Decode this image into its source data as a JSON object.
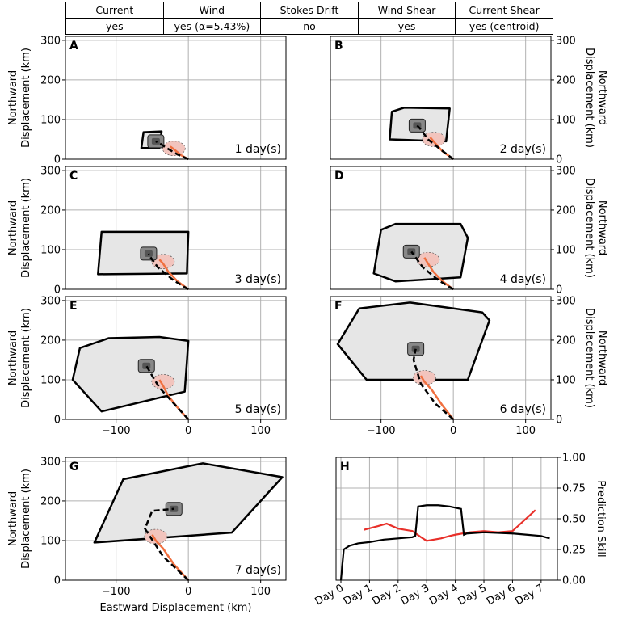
{
  "config_table": {
    "headers": [
      "Current",
      "Wind",
      "Stokes Drift",
      "Wind Shear",
      "Current Shear"
    ],
    "values": [
      "yes",
      "yes (α=5.43%)",
      "no",
      "yes",
      "yes (centroid)"
    ]
  },
  "colors": {
    "hull": "#000000",
    "fill_light": "#e6e6e6",
    "fill_dark": "#555555",
    "observed_track": "#000000",
    "model_track": "#f07040",
    "pink_region": "#f2c4bd",
    "skill_red": "#e8302a",
    "skill_black": "#000000"
  },
  "chart_data": [
    {
      "panel": "A",
      "type": "scatter",
      "annotation": "1 day(s)",
      "ylabel": "Northward Displacement (km)",
      "xlabel": "",
      "xlim": [
        -170,
        135
      ],
      "ylim": [
        0,
        310
      ],
      "yticks": [
        0,
        100,
        200,
        300
      ],
      "xticks": [
        -100,
        0,
        100
      ],
      "grid": true,
      "hull": [
        [
          -62,
          68
        ],
        [
          -37,
          70
        ],
        [
          -40,
          28
        ],
        [
          -65,
          28
        ]
      ],
      "observed_track": [
        [
          0,
          0
        ],
        [
          -15,
          12
        ],
        [
          -30,
          28
        ],
        [
          -38,
          38
        ],
        [
          -45,
          45
        ]
      ],
      "model_track": [
        [
          0,
          0
        ],
        [
          -10,
          10
        ],
        [
          -20,
          25
        ],
        [
          -25,
          32
        ]
      ]
    },
    {
      "panel": "B",
      "type": "scatter",
      "annotation": "2 day(s)",
      "ylabel": "Northward Displacement (km)",
      "xlabel": "",
      "xlim": [
        -170,
        135
      ],
      "ylim": [
        0,
        310
      ],
      "yticks": [
        0,
        100,
        200,
        300
      ],
      "xticks": [
        -100,
        0,
        100
      ],
      "grid": true,
      "hull": [
        [
          -85,
          120
        ],
        [
          -68,
          130
        ],
        [
          -5,
          128
        ],
        [
          -10,
          45
        ],
        [
          -88,
          50
        ]
      ],
      "observed_track": [
        [
          0,
          0
        ],
        [
          -18,
          25
        ],
        [
          -35,
          50
        ],
        [
          -45,
          75
        ],
        [
          -50,
          85
        ]
      ],
      "model_track": [
        [
          0,
          0
        ],
        [
          -15,
          20
        ],
        [
          -25,
          40
        ],
        [
          -32,
          55
        ]
      ]
    },
    {
      "panel": "C",
      "type": "scatter",
      "annotation": "3 day(s)",
      "ylabel": "Northward Displacement (km)",
      "xlabel": "",
      "xlim": [
        -170,
        135
      ],
      "ylim": [
        0,
        310
      ],
      "yticks": [
        0,
        100,
        200,
        300
      ],
      "xticks": [
        -100,
        0,
        100
      ],
      "grid": true,
      "hull": [
        [
          -120,
          145
        ],
        [
          0,
          145
        ],
        [
          -2,
          40
        ],
        [
          -125,
          38
        ]
      ],
      "observed_track": [
        [
          0,
          0
        ],
        [
          -20,
          22
        ],
        [
          -42,
          55
        ],
        [
          -52,
          80
        ],
        [
          -55,
          90
        ]
      ],
      "model_track": [
        [
          0,
          0
        ],
        [
          -15,
          20
        ],
        [
          -28,
          45
        ],
        [
          -35,
          65
        ],
        [
          -40,
          75
        ]
      ]
    },
    {
      "panel": "D",
      "type": "scatter",
      "annotation": "4 day(s)",
      "ylabel": "Northward Displacement (km)",
      "xlabel": "",
      "xlim": [
        -170,
        135
      ],
      "ylim": [
        0,
        310
      ],
      "yticks": [
        0,
        100,
        200,
        300
      ],
      "xticks": [
        -100,
        0,
        100
      ],
      "grid": true,
      "hull": [
        [
          -100,
          150
        ],
        [
          -80,
          165
        ],
        [
          10,
          165
        ],
        [
          20,
          130
        ],
        [
          10,
          30
        ],
        [
          -80,
          20
        ],
        [
          -110,
          40
        ]
      ],
      "observed_track": [
        [
          0,
          0
        ],
        [
          -20,
          22
        ],
        [
          -42,
          55
        ],
        [
          -52,
          80
        ],
        [
          -58,
          95
        ]
      ],
      "model_track": [
        [
          0,
          0
        ],
        [
          -15,
          20
        ],
        [
          -28,
          45
        ],
        [
          -35,
          65
        ],
        [
          -40,
          80
        ]
      ]
    },
    {
      "panel": "E",
      "type": "scatter",
      "annotation": "5 day(s)",
      "ylabel": "Northward Displacement (km)",
      "xlabel": "",
      "xlim": [
        -170,
        135
      ],
      "ylim": [
        0,
        310
      ],
      "yticks": [
        0,
        100,
        200,
        300
      ],
      "xticks": [
        -100,
        0,
        100
      ],
      "grid": true,
      "hull": [
        [
          -150,
          180
        ],
        [
          -110,
          205
        ],
        [
          -40,
          208
        ],
        [
          0,
          198
        ],
        [
          -5,
          70
        ],
        [
          -120,
          20
        ],
        [
          -160,
          100
        ]
      ],
      "observed_track": [
        [
          0,
          0
        ],
        [
          -20,
          40
        ],
        [
          -40,
          80
        ],
        [
          -50,
          110
        ],
        [
          -58,
          135
        ]
      ],
      "model_track": [
        [
          0,
          0
        ],
        [
          -15,
          30
        ],
        [
          -28,
          60
        ],
        [
          -35,
          85
        ],
        [
          -40,
          100
        ]
      ]
    },
    {
      "panel": "F",
      "type": "scatter",
      "annotation": "6 day(s)",
      "ylabel": "Northward Displacement (km)",
      "xlabel": "",
      "xlim": [
        -170,
        135
      ],
      "ylim": [
        0,
        310
      ],
      "yticks": [
        0,
        100,
        200,
        300
      ],
      "xticks": [
        -100,
        0,
        100
      ],
      "grid": true,
      "hull": [
        [
          -130,
          280
        ],
        [
          -60,
          295
        ],
        [
          40,
          270
        ],
        [
          50,
          250
        ],
        [
          20,
          100
        ],
        [
          -120,
          100
        ],
        [
          -160,
          190
        ]
      ],
      "observed_track": [
        [
          0,
          0
        ],
        [
          -25,
          40
        ],
        [
          -45,
          90
        ],
        [
          -55,
          150
        ],
        [
          -52,
          178
        ]
      ],
      "model_track": [
        [
          0,
          0
        ],
        [
          -15,
          35
        ],
        [
          -30,
          75
        ],
        [
          -40,
          95
        ],
        [
          -45,
          110
        ]
      ]
    },
    {
      "panel": "G",
      "type": "scatter",
      "annotation": "7 day(s)",
      "ylabel": "Northward Displacement (km)",
      "xlabel": "Eastward Displacement (km)",
      "xlim": [
        -170,
        135
      ],
      "ylim": [
        0,
        310
      ],
      "yticks": [
        0,
        100,
        200,
        300
      ],
      "xticks": [
        -100,
        0,
        100
      ],
      "grid": true,
      "hull": [
        [
          -90,
          255
        ],
        [
          20,
          295
        ],
        [
          130,
          260
        ],
        [
          60,
          120
        ],
        [
          -130,
          95
        ]
      ],
      "observed_track": [
        [
          0,
          0
        ],
        [
          -35,
          60
        ],
        [
          -60,
          130
        ],
        [
          -50,
          175
        ],
        [
          -20,
          180
        ]
      ],
      "model_track": [
        [
          0,
          0
        ],
        [
          -20,
          40
        ],
        [
          -35,
          80
        ],
        [
          -45,
          100
        ],
        [
          -50,
          115
        ]
      ]
    },
    {
      "panel": "H",
      "type": "line",
      "ylabel": "Prediction Skill",
      "xlabel": "",
      "ylim": [
        0,
        1
      ],
      "yticks": [
        0.0,
        0.25,
        0.5,
        0.75,
        1.0
      ],
      "categories": [
        "Day 0",
        "Day 1",
        "Day 2",
        "Day 3",
        "Day 4",
        "Day 5",
        "Day 6",
        "Day 7"
      ],
      "grid": true,
      "series": [
        {
          "x": [
            0.8,
            1.3,
            1.6,
            2.0,
            2.5,
            2.8,
            3.0,
            3.5,
            3.8,
            4.0,
            4.5,
            5.0,
            5.5,
            6.0,
            6.8
          ],
          "values": [
            0.41,
            0.44,
            0.46,
            0.42,
            0.4,
            0.35,
            0.32,
            0.34,
            0.36,
            0.37,
            0.39,
            0.4,
            0.39,
            0.4,
            0.57
          ]
        },
        {
          "x": [
            0.0,
            0.1,
            0.3,
            0.6,
            1.0,
            1.5,
            2.0,
            2.5,
            2.6,
            2.7,
            3.0,
            3.4,
            3.8,
            4.2,
            4.3,
            4.4,
            5.0,
            6.0,
            6.5,
            7.0,
            7.3
          ],
          "values": [
            0.0,
            0.25,
            0.28,
            0.3,
            0.31,
            0.33,
            0.34,
            0.35,
            0.36,
            0.6,
            0.61,
            0.61,
            0.6,
            0.58,
            0.37,
            0.38,
            0.39,
            0.38,
            0.37,
            0.36,
            0.34
          ]
        }
      ]
    }
  ]
}
